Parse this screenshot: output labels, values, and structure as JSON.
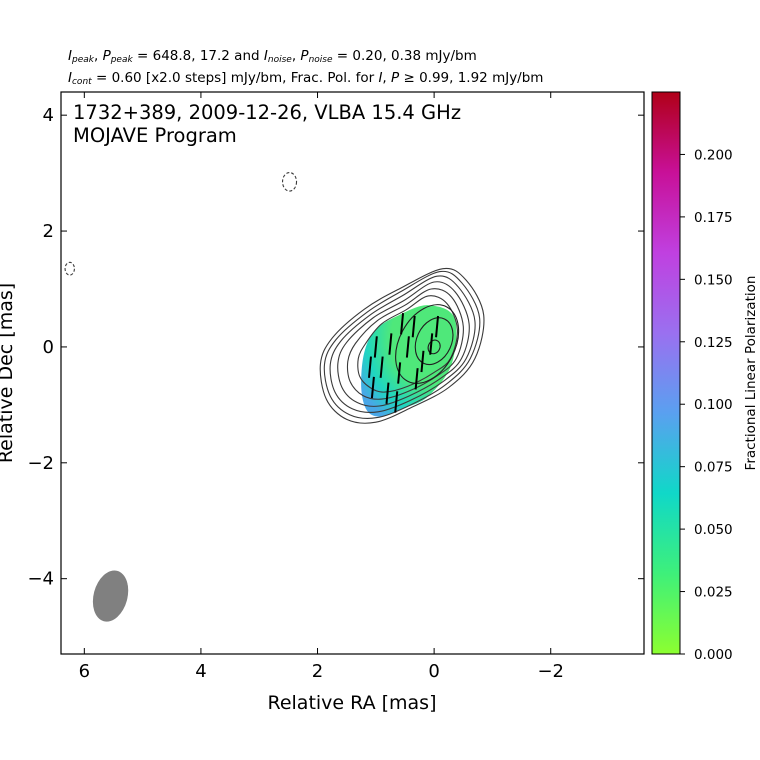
{
  "header": {
    "line1": {
      "ipeak_sym": "I",
      "ipeak_sub": "peak",
      "ppeak_sym": "P",
      "ppeak_sub": "peak",
      "peak_values": "= 648.8, 17.2 and",
      "inoise_sym": "I",
      "inoise_sub": "noise",
      "pnoise_sym": "P",
      "pnoise_sub": "noise",
      "noise_values": "= 0.20, 0.38 mJy/bm"
    },
    "line2": {
      "icont_sym": "I",
      "icont_sub": "cont",
      "cont_text": "= 0.60 [x2.0 steps] mJy/bm, Frac. Pol. for",
      "i_sym": "I",
      "p_sym": "P",
      "ge_text": "≥ 0.99, 1.92 mJy/bm"
    }
  },
  "chart_data": {
    "type": "contour",
    "title": "1732+389, 2009-12-26, VLBA 15.4 GHz",
    "subtitle": "MOJAVE Program",
    "xlabel": "Relative RA [mas]",
    "ylabel": "Relative Dec [mas]",
    "xlim": [
      6.4,
      -3.6
    ],
    "ylim": [
      -5.3,
      4.4
    ],
    "x_ticks": [
      6,
      4,
      2,
      0,
      -2
    ],
    "x_tick_labels": [
      "6",
      "4",
      "2",
      "0",
      "−2"
    ],
    "y_ticks": [
      4,
      2,
      0,
      -2,
      -4
    ],
    "y_tick_labels": [
      "4",
      "2",
      "0",
      "−2",
      "−4"
    ],
    "contours": {
      "core_center": [
        0.0,
        0.0
      ],
      "ellipses": [
        {
          "cx": 0.0,
          "cy": 0.0,
          "a": 0.12,
          "b": 0.1,
          "angle": 65
        },
        {
          "cx": 0.0,
          "cy": 0.1,
          "a": 0.42,
          "b": 0.3,
          "angle": 65
        },
        {
          "cx": 0.12,
          "cy": 0.05,
          "a": 0.72,
          "b": 0.48,
          "angle": 62
        }
      ],
      "outer_levels": [
        {
          "pts": [
            [
              -0.15,
              1.35
            ],
            [
              -0.55,
              1.15
            ],
            [
              -0.85,
              0.55
            ],
            [
              -0.7,
              -0.2
            ],
            [
              -0.25,
              -0.7
            ],
            [
              0.4,
              -1.05
            ],
            [
              1.0,
              -1.3
            ],
            [
              1.5,
              -1.25
            ],
            [
              1.85,
              -0.9
            ],
            [
              1.95,
              -0.3
            ],
            [
              1.75,
              0.15
            ],
            [
              1.2,
              0.65
            ],
            [
              0.6,
              1.0
            ]
          ]
        },
        {
          "pts": [
            [
              -0.1,
              1.3
            ],
            [
              -0.48,
              1.1
            ],
            [
              -0.78,
              0.5
            ],
            [
              -0.62,
              -0.2
            ],
            [
              -0.2,
              -0.65
            ],
            [
              0.4,
              -1.0
            ],
            [
              0.98,
              -1.22
            ],
            [
              1.45,
              -1.17
            ],
            [
              1.78,
              -0.85
            ],
            [
              1.88,
              -0.3
            ],
            [
              1.68,
              0.13
            ],
            [
              1.15,
              0.6
            ],
            [
              0.58,
              0.95
            ]
          ]
        },
        {
          "pts": [
            [
              -0.05,
              1.22
            ],
            [
              -0.42,
              1.03
            ],
            [
              -0.7,
              0.45
            ],
            [
              -0.55,
              -0.2
            ],
            [
              -0.15,
              -0.6
            ],
            [
              0.42,
              -0.93
            ],
            [
              0.96,
              -1.12
            ],
            [
              1.4,
              -1.07
            ],
            [
              1.7,
              -0.78
            ],
            [
              1.78,
              -0.3
            ],
            [
              1.6,
              0.1
            ],
            [
              1.1,
              0.55
            ],
            [
              0.55,
              0.88
            ]
          ]
        },
        {
          "pts": [
            [
              0.0,
              1.12
            ],
            [
              -0.36,
              0.95
            ],
            [
              -0.6,
              0.4
            ],
            [
              -0.47,
              -0.2
            ],
            [
              -0.1,
              -0.55
            ],
            [
              0.44,
              -0.85
            ],
            [
              0.94,
              -1.02
            ],
            [
              1.32,
              -0.96
            ],
            [
              1.58,
              -0.7
            ],
            [
              1.65,
              -0.28
            ],
            [
              1.5,
              0.08
            ],
            [
              1.05,
              0.5
            ],
            [
              0.52,
              0.8
            ]
          ]
        },
        {
          "pts": [
            [
              0.05,
              1.0
            ],
            [
              -0.3,
              0.86
            ],
            [
              -0.5,
              0.35
            ],
            [
              -0.38,
              -0.2
            ],
            [
              -0.05,
              -0.5
            ],
            [
              0.45,
              -0.77
            ],
            [
              0.9,
              -0.9
            ],
            [
              1.22,
              -0.84
            ],
            [
              1.44,
              -0.6
            ],
            [
              1.48,
              -0.25
            ],
            [
              1.35,
              0.06
            ],
            [
              0.98,
              0.45
            ],
            [
              0.5,
              0.72
            ]
          ]
        },
        {
          "pts": [
            [
              0.1,
              0.88
            ],
            [
              -0.22,
              0.75
            ],
            [
              -0.4,
              0.3
            ],
            [
              -0.28,
              -0.2
            ],
            [
              0.0,
              -0.44
            ],
            [
              0.45,
              -0.68
            ],
            [
              0.85,
              -0.78
            ],
            [
              1.1,
              -0.7
            ],
            [
              1.28,
              -0.5
            ],
            [
              1.3,
              -0.2
            ],
            [
              1.18,
              0.05
            ],
            [
              0.9,
              0.4
            ],
            [
              0.48,
              0.64
            ]
          ]
        }
      ],
      "negative": [
        {
          "cx": 2.48,
          "cy": 2.85,
          "a": 0.12,
          "b": 0.16
        },
        {
          "cx": 6.25,
          "cy": 1.35,
          "a": 0.08,
          "b": 0.11
        }
      ]
    },
    "fractional_polarization": {
      "region_pts": [
        [
          -0.35,
          0.5
        ],
        [
          -0.3,
          -0.3
        ],
        [
          0.1,
          -0.85
        ],
        [
          0.5,
          -1.05
        ],
        [
          0.9,
          -1.2
        ],
        [
          1.15,
          -1.1
        ],
        [
          1.25,
          -0.7
        ],
        [
          1.2,
          -0.1
        ],
        [
          1.0,
          0.3
        ],
        [
          0.6,
          0.55
        ],
        [
          0.1,
          0.72
        ]
      ],
      "color_inner": "#4fe87a",
      "color_mid": "#1fd6c0",
      "color_outer": "#49a7e8",
      "evpa_sticks": [
        {
          "x": -0.05,
          "y": 0.35
        },
        {
          "x": 0.05,
          "y": 0.05
        },
        {
          "x": 0.2,
          "y": -0.25
        },
        {
          "x": 0.35,
          "y": 0.35
        },
        {
          "x": 0.3,
          "y": -0.55
        },
        {
          "x": 0.45,
          "y": 0.0
        },
        {
          "x": 0.55,
          "y": 0.4
        },
        {
          "x": 0.6,
          "y": -0.45
        },
        {
          "x": 0.75,
          "y": 0.05
        },
        {
          "x": 0.8,
          "y": -0.8
        },
        {
          "x": 0.9,
          "y": -0.35
        },
        {
          "x": 1.0,
          "y": 0.0
        },
        {
          "x": 1.05,
          "y": -0.7
        },
        {
          "x": 0.65,
          "y": -0.95
        },
        {
          "x": 1.1,
          "y": -0.35
        }
      ]
    },
    "beam": {
      "cx": 5.55,
      "cy": -4.3,
      "major": 0.9,
      "minor": 0.58,
      "pa_deg": -15,
      "color": "#808080"
    },
    "colorbar": {
      "label": "Fractional Linear Polarization",
      "min": 0.0,
      "max": 0.225,
      "ticks": [
        0.0,
        0.025,
        0.05,
        0.075,
        0.1,
        0.125,
        0.15,
        0.175,
        0.2
      ],
      "tick_labels": [
        "0.000",
        "0.025",
        "0.050",
        "0.075",
        "0.100",
        "0.125",
        "0.150",
        "0.175",
        "0.200"
      ],
      "colors": [
        "#8cff30",
        "#3ef07a",
        "#10d8c8",
        "#5aa0f0",
        "#9a70f0",
        "#c040e0",
        "#c81098",
        "#b00018"
      ]
    }
  }
}
